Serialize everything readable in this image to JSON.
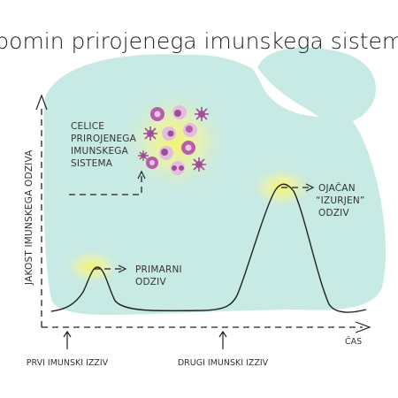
{
  "title": "Spomin prirojenega imunskega sistema",
  "axes": {
    "y_label": "JAKOST IMUNSKEGA ODZIVA",
    "x_label": "ČAS"
  },
  "labels": {
    "innate_cells": [
      "CELICE",
      "PRIROJENEGA",
      "IMUNSKEGA",
      "SISTEMA"
    ],
    "primary_response": [
      "PRIMARNI",
      "ODZIV"
    ],
    "enhanced_response": [
      "OJAČAN",
      "“IZURJEN”",
      "ODZIV"
    ],
    "first_challenge": "PRVI IMUNSKI IZZIV",
    "second_challenge": "DRUGI IMUNSKI IZZIV"
  },
  "colors": {
    "background_blob": "#c8eae4",
    "glow": "#f2f18a",
    "cell_light": "#e3bde0",
    "cell_dark": "#a14e97",
    "curve": "#222222"
  }
}
